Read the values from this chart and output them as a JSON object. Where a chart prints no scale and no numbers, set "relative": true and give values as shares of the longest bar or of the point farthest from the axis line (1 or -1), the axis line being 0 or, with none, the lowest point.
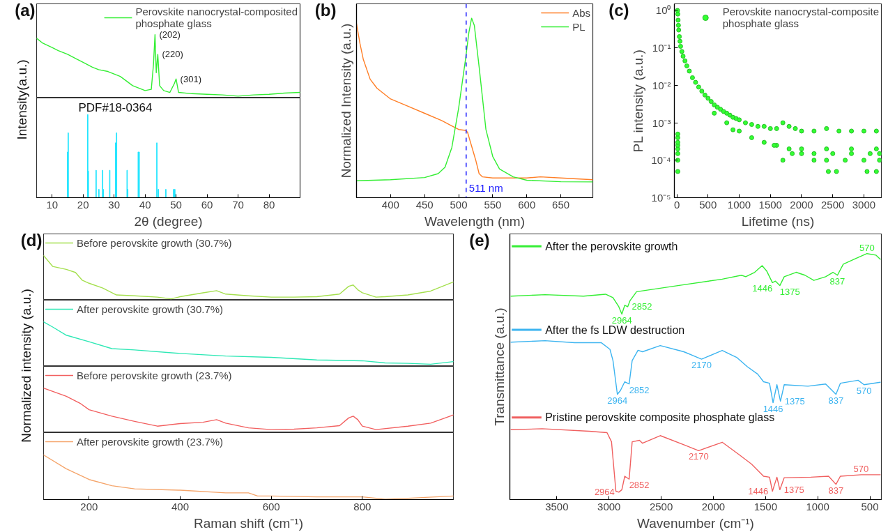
{
  "chart_data": [
    {
      "type": "line",
      "title": "(a)",
      "ylabel": "Intensity(a.u.)",
      "relative": true,
      "xlim": [
        5,
        90
      ],
      "tick_labels": false,
      "legend": "top right",
      "annotations": [
        {
          "text": "(202)",
          "x": 43.2,
          "y": 1.0
        },
        {
          "text": "(220)",
          "x": 44.1,
          "y": 0.68
        },
        {
          "text": "(301)",
          "x": 50,
          "y": 0.28
        }
      ],
      "series": [
        {
          "name": "Perovskite nanocrystal-composited phosphate glass",
          "color": "#33ee33",
          "x": [
            5,
            7,
            10,
            12,
            15,
            18,
            20,
            23,
            25,
            28,
            32,
            36,
            40,
            42,
            42.7,
            43.2,
            43.6,
            44.1,
            44.7,
            46,
            48,
            49.5,
            50,
            50.8,
            55,
            60,
            65,
            70,
            75,
            80,
            85,
            90
          ],
          "values": [
            0.94,
            0.86,
            0.79,
            0.74,
            0.68,
            0.6,
            0.55,
            0.47,
            0.43,
            0.4,
            0.32,
            0.17,
            0.09,
            0.11,
            0.51,
            1.0,
            0.38,
            0.68,
            0.17,
            0.09,
            0.06,
            0.21,
            0.28,
            0.06,
            0.04,
            0.03,
            0.02,
            0,
            0.02,
            0.03,
            0.05,
            0.06
          ]
        }
      ]
    },
    {
      "type": "bar",
      "relative": true,
      "xlim": [
        5,
        90
      ],
      "xticks": [
        10,
        20,
        30,
        40,
        50,
        60,
        70,
        80
      ],
      "xlabel": "2θ (degree)",
      "annotations": [
        "PDF#18-0364"
      ],
      "color": "#22e5ff",
      "x": [
        15.0,
        15.2,
        21.5,
        21.7,
        24.2,
        25.1,
        26.3,
        26.5,
        28.6,
        30.5,
        30.8,
        34.2,
        34.4,
        37.8,
        38.1,
        43.8,
        44.3,
        46.7,
        49.2,
        49.6
      ],
      "values": [
        0.55,
        0.78,
        1.0,
        0.32,
        0.33,
        0.1,
        0.33,
        0.1,
        0.33,
        0.66,
        0.78,
        0.33,
        0.1,
        0.55,
        0.55,
        0.66,
        0.1,
        0.1,
        0.1,
        0.1
      ]
    },
    {
      "type": "line",
      "title": "(b)",
      "relative": true,
      "xlim": [
        350,
        697
      ],
      "xticks": [
        400,
        450,
        500,
        550,
        600,
        650
      ],
      "xlabel": "Wavelength (nm)",
      "ylabel": "Normalized Intensity (a.u.)",
      "legend": "top right",
      "ref_lines": [
        {
          "axis": "x",
          "value": 511,
          "label": "511 nm",
          "color": "#1a1aff",
          "line_style": "dashed"
        }
      ],
      "series": [
        {
          "name": "Abs",
          "color": "#ff7f27",
          "x": [
            350,
            355,
            360,
            370,
            380,
            400,
            425,
            450,
            475,
            490,
            500,
            510,
            513,
            518,
            525,
            530,
            535,
            550,
            600,
            620,
            650,
            697
          ],
          "values": [
            0.97,
            0.86,
            0.77,
            0.66,
            0.61,
            0.55,
            0.51,
            0.47,
            0.43,
            0.4,
            0.38,
            0.375,
            0.365,
            0.3,
            0.21,
            0.134,
            0.116,
            0.11,
            0.11,
            0.116,
            0.11,
            0.1
          ]
        },
        {
          "name": "PL",
          "color": "#33ee33",
          "x": [
            350,
            400,
            450,
            470,
            480,
            490,
            500,
            510,
            515,
            519,
            523,
            530,
            540,
            550,
            560,
            580,
            600,
            650,
            697
          ],
          "values": [
            0.094,
            0.1,
            0.112,
            0.134,
            0.17,
            0.28,
            0.5,
            0.77,
            0.92,
            1.0,
            0.96,
            0.73,
            0.38,
            0.23,
            0.16,
            0.116,
            0.097,
            0.089,
            0.088
          ]
        }
      ]
    },
    {
      "type": "scatter",
      "title": "(c)",
      "log": true,
      "marker": "circle",
      "xlim": [
        -40,
        3280
      ],
      "xticks": [
        0,
        500,
        1000,
        1500,
        2000,
        2500,
        3000
      ],
      "ylim": [
        1e-05,
        1.5
      ],
      "yticks": [
        {
          "value": 1e-05,
          "label": "10⁻⁵"
        },
        {
          "value": 0.0001,
          "label": "10⁻⁴"
        },
        {
          "value": 0.001,
          "label": "10⁻³"
        },
        {
          "value": 0.01,
          "label": "10⁻²"
        },
        {
          "value": 0.1,
          "label": "10⁻¹"
        },
        {
          "value": 1,
          "label": "10⁰"
        }
      ],
      "xlabel": "Lifetime (ns)",
      "ylabel": "PL intensity (a.u.)",
      "legend": "top right",
      "series": [
        {
          "name": "Perovskite nanocrystal-composite phosphate glass",
          "color": "#33ff33",
          "x": [
            10,
            15,
            20,
            25,
            30,
            40,
            50,
            60,
            80,
            100,
            130,
            160,
            200,
            250,
            300,
            350,
            400,
            450,
            500,
            550,
            600,
            650,
            700,
            750,
            800,
            850,
            900,
            950,
            1000,
            1100,
            1200,
            1300,
            1400,
            1500,
            1600,
            1700,
            1800,
            1900,
            2000,
            2200,
            2400,
            2600,
            2800,
            3000,
            3200,
            600,
            800,
            1000,
            1200,
            1400,
            1600,
            1800,
            2000,
            2400,
            2800,
            3200,
            1850,
            2000,
            2200,
            2500,
            2800,
            3100,
            3250,
            1700,
            2200,
            2400,
            2700,
            3000,
            3250,
            2430,
            2560,
            3050,
            3200,
            900,
            1560,
            15,
            15,
            15,
            15,
            15,
            15,
            15,
            15
          ],
          "values": [
            1,
            0.8,
            0.55,
            0.4,
            0.3,
            0.2,
            0.15,
            0.11,
            0.08,
            0.06,
            0.045,
            0.033,
            0.024,
            0.016,
            0.012,
            0.009,
            0.007,
            0.0055,
            0.0045,
            0.0037,
            0.003,
            0.0026,
            0.0023,
            0.002,
            0.0018,
            0.0016,
            0.0014,
            0.0013,
            0.0012,
            0.001,
            0.0009,
            0.0008,
            0.0008,
            0.0007,
            0.0007,
            0.001,
            0.0008,
            0.0007,
            0.0006,
            0.0006,
            0.0007,
            0.0006,
            0.0006,
            0.0006,
            0.0006,
            0.0018,
            0.001,
            0.0006,
            0.0004,
            0.0003,
            0.00025,
            0.0002,
            0.0002,
            0.0002,
            0.0002,
            0.0002,
            0.00015,
            0.00015,
            0.00015,
            0.00015,
            0.00015,
            0.00015,
            0.00015,
            0.0001,
            0.0001,
            0.0001,
            0.0001,
            0.0001,
            0.0001,
            5e-05,
            5e-05,
            5e-05,
            5e-05,
            0.00065,
            0.00025,
            5e-05,
            0.0001,
            0.00015,
            0.0002,
            0.00025,
            0.0003,
            0.0004,
            0.0005
          ]
        }
      ]
    },
    {
      "type": "line",
      "title": "(d)",
      "ylabel": "Normalized intensity (a.u.)",
      "relative": true,
      "xlim": [
        100,
        1000
      ],
      "tick_labels": false,
      "legend": "top left",
      "series": [
        {
          "name": "Before perovskite growth (30.7%)",
          "color": "#a5e04f",
          "x": [
            100,
            120,
            150,
            170,
            185,
            200,
            230,
            260,
            300,
            350,
            380,
            400,
            450,
            480,
            500,
            550,
            600,
            650,
            700,
            750,
            770,
            780,
            790,
            800,
            830,
            850,
            900,
            950,
            1000
          ],
          "values": [
            1.0,
            0.75,
            0.68,
            0.61,
            0.43,
            0.36,
            0.25,
            0.09,
            0.07,
            0.04,
            0,
            0.05,
            0.14,
            0.19,
            0.11,
            0.07,
            0.04,
            0.04,
            0.05,
            0.11,
            0.29,
            0.32,
            0.21,
            0.14,
            0.04,
            0.05,
            0.09,
            0.18,
            0.39
          ]
        }
      ]
    },
    {
      "type": "line",
      "relative": true,
      "xlim": [
        100,
        1000
      ],
      "tick_labels": false,
      "legend": "top left",
      "series": [
        {
          "name": "After perovskite growth (30.7%)",
          "color": "#2ee8b5",
          "x": [
            100,
            120,
            150,
            200,
            250,
            300,
            400,
            500,
            600,
            700,
            800,
            850,
            900,
            950,
            1000
          ],
          "values": [
            1.0,
            0.88,
            0.69,
            0.54,
            0.38,
            0.35,
            0.27,
            0.21,
            0.18,
            0.12,
            0.1,
            0.05,
            0.04,
            0.02,
            0.08
          ]
        }
      ]
    },
    {
      "type": "line",
      "relative": true,
      "xlim": [
        100,
        1000
      ],
      "tick_labels": false,
      "legend": "top left",
      "series": [
        {
          "name": "Before perovskite growth (23.7%)",
          "color": "#f26060",
          "x": [
            100,
            150,
            180,
            200,
            250,
            300,
            350,
            400,
            450,
            480,
            500,
            550,
            600,
            650,
            700,
            750,
            770,
            780,
            790,
            800,
            830,
            900,
            950,
            1000
          ],
          "values": [
            1.0,
            0.81,
            0.65,
            0.5,
            0.35,
            0.23,
            0.12,
            0.18,
            0.21,
            0.27,
            0.19,
            0.08,
            0.04,
            0.05,
            0.08,
            0.13,
            0.31,
            0.35,
            0.27,
            0.12,
            0.04,
            0.12,
            0.19,
            0.38
          ]
        }
      ]
    },
    {
      "type": "line",
      "relative": true,
      "xlim": [
        100,
        1000
      ],
      "xticks": [
        200,
        400,
        600,
        800
      ],
      "xlabel": "Raman shift (cm⁻¹)",
      "legend": "top left",
      "series": [
        {
          "name": "After perovskite growth (23.7%)",
          "color": "#f5a56b",
          "x": [
            100,
            150,
            200,
            250,
            300,
            400,
            500,
            550,
            570,
            600,
            700,
            800,
            850,
            900,
            1000
          ],
          "values": [
            1.0,
            0.69,
            0.45,
            0.31,
            0.24,
            0.21,
            0.15,
            0.15,
            0.08,
            0.08,
            0.06,
            0.06,
            0.01,
            0.03,
            0.08
          ]
        }
      ]
    },
    {
      "type": "line",
      "title": "(e)",
      "relative": true,
      "xlim": [
        3950,
        390
      ],
      "xticks": [
        3500,
        3000,
        2500,
        2000,
        1500,
        1000,
        500
      ],
      "xlabel": "Wavenumber (cm⁻¹)",
      "ylabel": "Transmittance (a.u.)",
      "legend": "top left",
      "annotations": [
        {
          "text": "2964",
          "x": 2877,
          "y": 0.754
        },
        {
          "text": "2852",
          "x": 2821,
          "y": 0.784
        },
        {
          "text": "1446",
          "x": 1434,
          "y": 0.882
        },
        {
          "text": "1375",
          "x": 1363,
          "y": 0.87
        },
        {
          "text": "837",
          "x": 811,
          "y": 0.912
        },
        {
          "text": "570",
          "x": 528,
          "y": 1.0
        },
        {
          "text": "2170",
          "x": 2113,
          "y": 0.571
        },
        {
          "text": "2964",
          "x": 2920,
          "y": 0.428
        },
        {
          "text": "2852",
          "x": 2807,
          "y": 0.47
        },
        {
          "text": "1446",
          "x": 1428,
          "y": 0.394
        },
        {
          "text": "1375",
          "x": 1357,
          "y": 0.4
        },
        {
          "text": "837",
          "x": 825,
          "y": 0.428
        },
        {
          "text": "570",
          "x": 556,
          "y": 0.467
        },
        {
          "text": "2170",
          "x": 2141,
          "y": 0.199
        },
        {
          "text": "2964",
          "x": 2906,
          "y": 0.03
        },
        {
          "text": "2852",
          "x": 2807,
          "y": 0.083
        },
        {
          "text": "1446",
          "x": 1434,
          "y": 0.034
        },
        {
          "text": "1375",
          "x": 1363,
          "y": 0.04
        },
        {
          "text": "837",
          "x": 825,
          "y": 0.062
        },
        {
          "text": "570",
          "x": 584,
          "y": 0.101
        }
      ],
      "series": [
        {
          "name": "After the perovskite growth",
          "color": "#33ee33",
          "x": [
            3939,
            3613,
            3245,
            3033,
            2962,
            2906,
            2877,
            2849,
            2821,
            2798,
            2736,
            2340,
            1915,
            1731,
            1690,
            1604,
            1533,
            1490,
            1434,
            1405,
            1363,
            1321,
            1207,
            1122,
            1037,
            924,
            854,
            811,
            755,
            641,
            528,
            443,
            401
          ],
          "values": [
            0.827,
            0.833,
            0.827,
            0.835,
            0.821,
            0.784,
            0.754,
            0.79,
            0.784,
            0.809,
            0.845,
            0.87,
            0.896,
            0.912,
            0.906,
            0.924,
            0.951,
            0.93,
            0.882,
            0.888,
            0.87,
            0.906,
            0.924,
            0.912,
            0.891,
            0.906,
            0.924,
            0.912,
            0.957,
            0.979,
            1.0,
            0.994,
            0.977
          ]
        },
        {
          "name": "After the fs LDW destruction",
          "color": "#3cb4f0",
          "x": [
            3939,
            3613,
            3330,
            3075,
            2991,
            2962,
            2920,
            2891,
            2849,
            2807,
            2778,
            2722,
            2679,
            2509,
            2283,
            2113,
            1915,
            1773,
            1674,
            1575,
            1519,
            1462,
            1428,
            1391,
            1357,
            1321,
            1094,
            924,
            825,
            783,
            613,
            556,
            401
          ],
          "values": [
            0.64,
            0.646,
            0.638,
            0.638,
            0.611,
            0.565,
            0.428,
            0.443,
            0.479,
            0.47,
            0.565,
            0.607,
            0.601,
            0.626,
            0.601,
            0.571,
            0.606,
            0.577,
            0.54,
            0.51,
            0.479,
            0.473,
            0.394,
            0.467,
            0.4,
            0.467,
            0.461,
            0.47,
            0.428,
            0.473,
            0.485,
            0.467,
            0.477
          ]
        },
        {
          "name": "Pristine perovskite composite phosphate glass",
          "color": "#f06060",
          "x": [
            3939,
            3641,
            3189,
            3019,
            2976,
            2934,
            2906,
            2877,
            2849,
            2807,
            2778,
            2708,
            2679,
            2509,
            2283,
            2141,
            1915,
            1745,
            1633,
            1519,
            1462,
            1434,
            1391,
            1363,
            1321,
            1066,
            896,
            825,
            783,
            584,
            401
          ],
          "values": [
            0.284,
            0.288,
            0.278,
            0.272,
            0.235,
            0.034,
            0.03,
            0.04,
            0.095,
            0.083,
            0.235,
            0.241,
            0.229,
            0.26,
            0.223,
            0.199,
            0.233,
            0.18,
            0.144,
            0.095,
            0.091,
            0.034,
            0.091,
            0.04,
            0.089,
            0.091,
            0.095,
            0.062,
            0.095,
            0.101,
            0.101
          ]
        }
      ]
    }
  ]
}
